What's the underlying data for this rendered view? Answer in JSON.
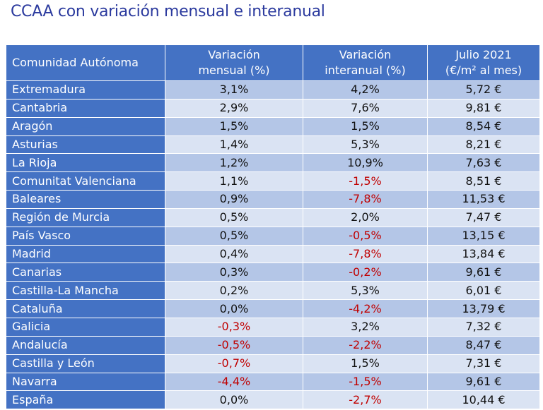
{
  "title": "CCAA con variación mensual e interanual",
  "headers": {
    "region": "Comunidad Autónoma",
    "monthly_line1": "Variación",
    "monthly_line2": "mensual (%)",
    "annual_line1": "Variación",
    "annual_line2": "interanual (%)",
    "price_line1": "Julio 2021",
    "price_line2": "(€/m² al mes)"
  },
  "colors": {
    "header_blue": "#4472c4",
    "row_light": "#dae3f3",
    "row_mid": "#b4c6e7",
    "negative": "#c00000",
    "title": "#2b3a9e"
  },
  "rows": [
    {
      "region": "Extremadura",
      "monthly": "3,1%",
      "annual": "4,2%",
      "price": "5,72 €"
    },
    {
      "region": "Cantabria",
      "monthly": "2,9%",
      "annual": "7,6%",
      "price": "9,81 €"
    },
    {
      "region": "Aragón",
      "monthly": "1,5%",
      "annual": "1,5%",
      "price": "8,54 €"
    },
    {
      "region": "Asturias",
      "monthly": "1,4%",
      "annual": "5,3%",
      "price": "8,21 €"
    },
    {
      "region": "La Rioja",
      "monthly": "1,2%",
      "annual": "10,9%",
      "price": "7,63 €"
    },
    {
      "region": "Comunitat Valenciana",
      "monthly": "1,1%",
      "annual": "-1,5%",
      "price": "8,51 €"
    },
    {
      "region": "Baleares",
      "monthly": "0,9%",
      "annual": "-7,8%",
      "price": "11,53 €"
    },
    {
      "region": "Región de Murcia",
      "monthly": "0,5%",
      "annual": "2,0%",
      "price": "7,47 €"
    },
    {
      "region": "País Vasco",
      "monthly": "0,5%",
      "annual": "-0,5%",
      "price": "13,15 €"
    },
    {
      "region": "Madrid",
      "monthly": "0,4%",
      "annual": "-7,8%",
      "price": "13,84 €"
    },
    {
      "region": "Canarias",
      "monthly": "0,3%",
      "annual": "-0,2%",
      "price": "9,61 €"
    },
    {
      "region": "Castilla-La Mancha",
      "monthly": "0,2%",
      "annual": "5,3%",
      "price": "6,01 €"
    },
    {
      "region": "Cataluña",
      "monthly": "0,0%",
      "annual": "-4,2%",
      "price": "13,79 €"
    },
    {
      "region": "Galicia",
      "monthly": "-0,3%",
      "annual": "3,2%",
      "price": "7,32 €"
    },
    {
      "region": "Andalucía",
      "monthly": "-0,5%",
      "annual": "-2,2%",
      "price": "8,47 €"
    },
    {
      "region": "Castilla y León",
      "monthly": "-0,7%",
      "annual": "1,5%",
      "price": "7,31 €"
    },
    {
      "region": "Navarra",
      "monthly": "-4,4%",
      "annual": "-1,5%",
      "price": "9,61 €"
    },
    {
      "region": "España",
      "monthly": "0,0%",
      "annual": "-2,7%",
      "price": "10,44 €"
    }
  ]
}
